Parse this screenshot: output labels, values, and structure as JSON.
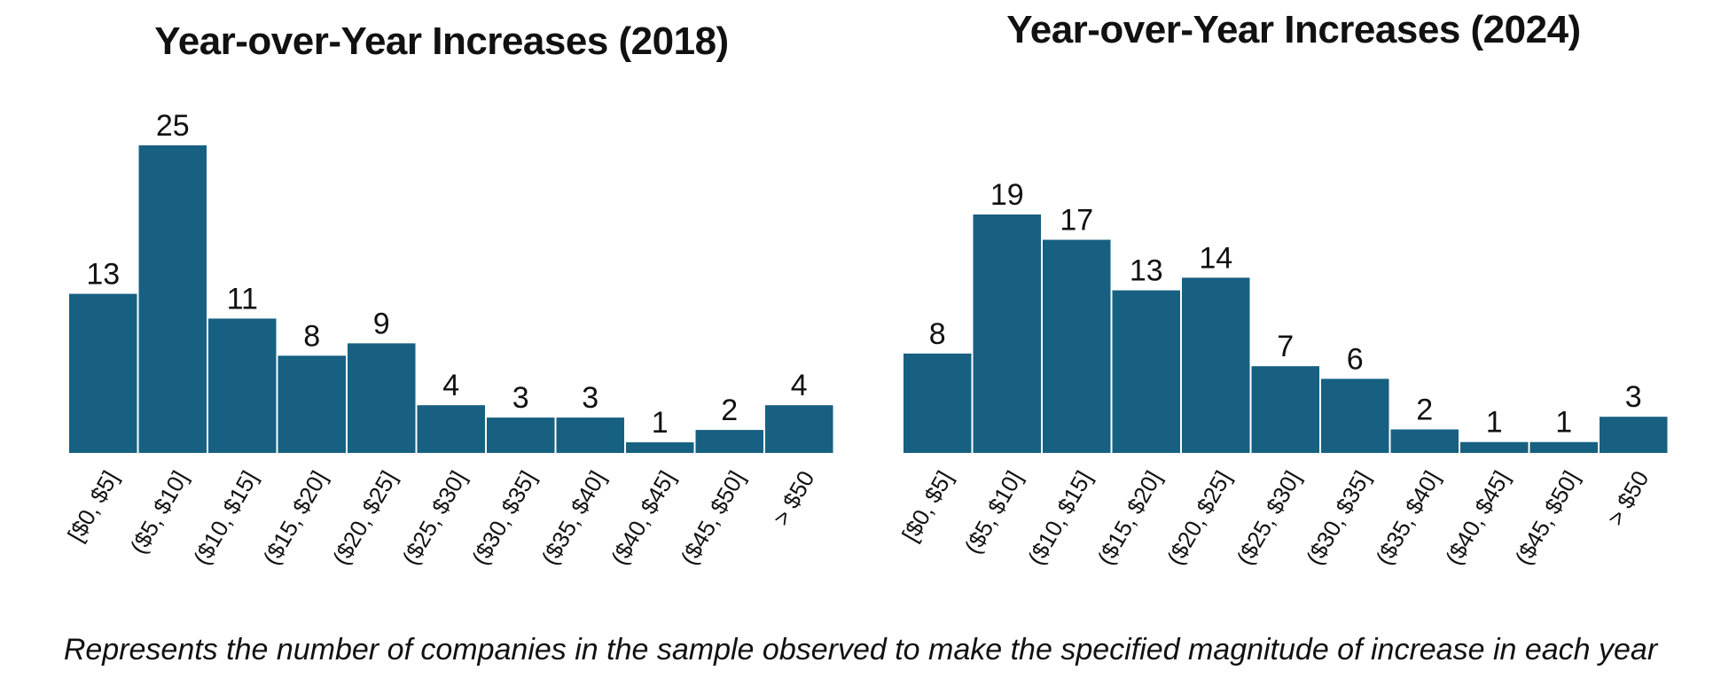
{
  "colors": {
    "bar": "#176082",
    "text": "#111111"
  },
  "caption": "Represents the number of companies in the sample observed to make the specified magnitude of increase in each year",
  "chart_data": [
    {
      "type": "bar",
      "title": "Year-over-Year Increases (2018)",
      "categories": [
        "[$0, $5]",
        "($5, $10]",
        "($10, $15]",
        "($15, $20]",
        "($20, $25]",
        "($25, $30]",
        "($30, $35]",
        "($35, $40]",
        "($40, $45]",
        "($45, $50]",
        "> $50"
      ],
      "values": [
        13,
        25,
        11,
        8,
        9,
        4,
        3,
        3,
        1,
        2,
        4
      ],
      "data_labels": true,
      "ylim": [
        0,
        25
      ],
      "grid": false,
      "y_axis_shown": false
    },
    {
      "type": "bar",
      "title": "Year-over-Year Increases (2024)",
      "categories": [
        "[$0, $5]",
        "($5, $10]",
        "($10, $15]",
        "($15, $20]",
        "($20, $25]",
        "($25, $30]",
        "($30, $35]",
        "($35, $40]",
        "($40, $45]",
        "($45, $50]",
        "> $50"
      ],
      "values": [
        8,
        19,
        17,
        13,
        14,
        7,
        6,
        2,
        1,
        1,
        3
      ],
      "data_labels": true,
      "ylim": [
        0,
        19
      ],
      "grid": false,
      "y_axis_shown": false
    }
  ]
}
